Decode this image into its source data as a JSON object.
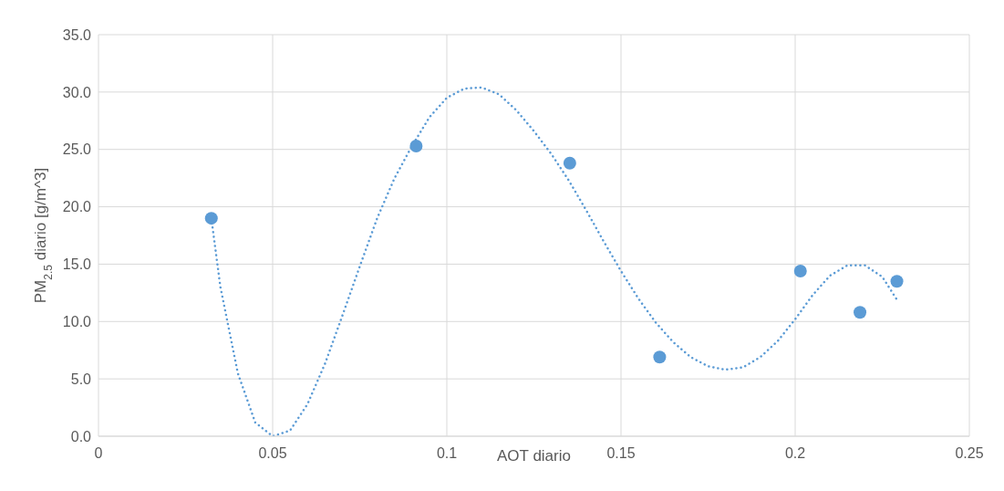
{
  "chart_data": {
    "type": "scatter",
    "xlabel": "AOT diario",
    "ylabel": "PM$_{2.5}$ diario [g/m^3]",
    "xlim": [
      0,
      0.25
    ],
    "xticks": [
      0,
      0.05,
      0.1,
      0.15,
      0.2,
      0.25
    ],
    "ylim": [
      0,
      35
    ],
    "yticks": [
      {
        "value": 0,
        "label": "0.0"
      },
      {
        "value": 5,
        "label": "5.0"
      },
      {
        "value": 10,
        "label": "10.0"
      },
      {
        "value": 15,
        "label": "15.0"
      },
      {
        "value": 20,
        "label": "20.0"
      },
      {
        "value": 25,
        "label": "25.0"
      },
      {
        "value": 30,
        "label": "30.0"
      },
      {
        "value": 35,
        "label": "35.0"
      }
    ],
    "grid": true,
    "marker": "circle",
    "series": [
      {
        "color": "#5b9bd5",
        "x": [
          0.0324,
          0.0912,
          0.1353,
          0.1611,
          0.2015,
          0.2186,
          0.2292
        ],
        "values": [
          19.0,
          25.3,
          23.8,
          6.9,
          14.4,
          10.8,
          13.5
        ]
      },
      {
        "type": "line",
        "color": "#5b9bd5",
        "line_style": "dotted",
        "marker": "none",
        "x": [
          0.0324,
          0.035,
          0.04,
          0.045,
          0.05,
          0.055,
          0.06,
          0.065,
          0.07,
          0.075,
          0.08,
          0.085,
          0.09,
          0.095,
          0.1,
          0.105,
          0.11,
          0.115,
          0.12,
          0.125,
          0.13,
          0.135,
          0.14,
          0.145,
          0.15,
          0.155,
          0.16,
          0.165,
          0.17,
          0.175,
          0.18,
          0.185,
          0.19,
          0.195,
          0.2,
          0.205,
          0.21,
          0.215,
          0.22,
          0.225,
          0.229
        ],
        "values": [
          19.0,
          13.0,
          5.5,
          1.2,
          0.0,
          0.5,
          2.8,
          6.3,
          10.5,
          14.8,
          19.0,
          22.5,
          25.3,
          27.8,
          29.5,
          30.3,
          30.4,
          29.8,
          28.4,
          26.6,
          24.6,
          22.3,
          19.7,
          17.0,
          14.4,
          12.0,
          9.9,
          8.2,
          6.9,
          6.1,
          5.8,
          6.0,
          6.9,
          8.3,
          10.2,
          12.3,
          14.0,
          14.9,
          14.9,
          13.9,
          12.0
        ]
      }
    ]
  }
}
